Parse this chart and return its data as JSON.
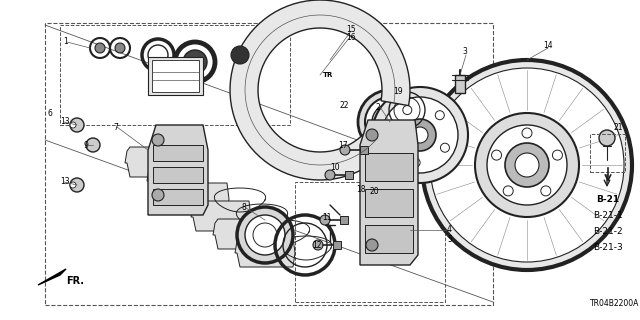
{
  "bg_color": "#ffffff",
  "diagram_code": "TR04B2200A",
  "b_labels": [
    "B-21",
    "B-21-1",
    "B-21-2",
    "B-21-3"
  ],
  "gray": "#333333",
  "lgray": "#777777",
  "figsize": [
    6.4,
    3.2
  ],
  "dpi": 100
}
